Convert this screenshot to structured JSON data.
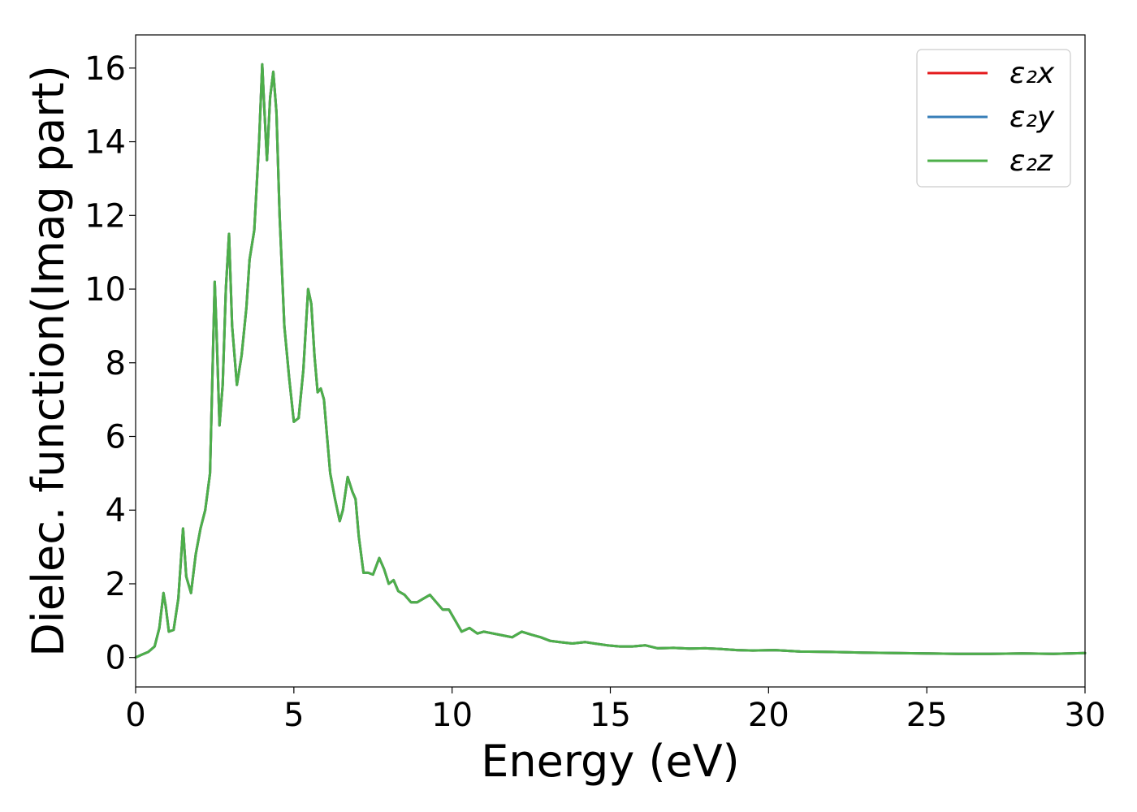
{
  "chart_data": {
    "type": "line",
    "title": "",
    "xlabel": "Energy (eV)",
    "ylabel": "Dielec. function(Imag part)",
    "xlim": [
      0,
      30
    ],
    "ylim": [
      -0.8,
      16.9
    ],
    "xticks": [
      0,
      5,
      10,
      15,
      20,
      25,
      30
    ],
    "xtick_labels": [
      "0",
      "5",
      "10",
      "15",
      "20",
      "25",
      "30"
    ],
    "yticks": [
      0,
      2,
      4,
      6,
      8,
      10,
      12,
      14,
      16
    ],
    "ytick_labels": [
      "0",
      "2",
      "4",
      "6",
      "8",
      "10",
      "12",
      "14",
      "16"
    ],
    "grid": false,
    "legend_position": "top-right",
    "x": [
      0,
      0.2,
      0.4,
      0.6,
      0.75,
      0.88,
      0.95,
      1.05,
      1.2,
      1.35,
      1.5,
      1.6,
      1.75,
      1.9,
      2.05,
      2.2,
      2.35,
      2.5,
      2.55,
      2.65,
      2.75,
      2.85,
      2.95,
      3.05,
      3.2,
      3.35,
      3.5,
      3.6,
      3.75,
      3.9,
      4.0,
      4.05,
      4.15,
      4.25,
      4.35,
      4.45,
      4.55,
      4.7,
      4.85,
      5.0,
      5.15,
      5.3,
      5.45,
      5.55,
      5.65,
      5.75,
      5.85,
      5.95,
      6.05,
      6.15,
      6.3,
      6.45,
      6.55,
      6.7,
      6.85,
      6.95,
      7.05,
      7.2,
      7.35,
      7.5,
      7.7,
      7.85,
      8.0,
      8.15,
      8.3,
      8.5,
      8.7,
      8.9,
      9.1,
      9.3,
      9.5,
      9.7,
      9.9,
      10.1,
      10.3,
      10.55,
      10.8,
      11.0,
      11.3,
      11.6,
      11.9,
      12.2,
      12.5,
      12.8,
      13.1,
      13.4,
      13.8,
      14.2,
      14.5,
      14.9,
      15.3,
      15.7,
      16.1,
      16.5,
      17.0,
      17.5,
      18.0,
      18.5,
      19.0,
      19.5,
      20.2,
      21.0,
      22.0,
      23.0,
      24.0,
      25.0,
      26.0,
      27.0,
      28.0,
      29.0,
      30.0
    ],
    "series": [
      {
        "name": "ε₂x",
        "color": "#e41a1c",
        "values": [
          0.0,
          0.08,
          0.15,
          0.3,
          0.8,
          1.75,
          1.4,
          0.7,
          0.75,
          1.6,
          3.5,
          2.2,
          1.75,
          2.8,
          3.5,
          4.0,
          5.0,
          10.2,
          9.0,
          6.3,
          7.4,
          10.0,
          11.5,
          9.0,
          7.4,
          8.2,
          9.5,
          10.8,
          11.6,
          14.0,
          16.1,
          15.2,
          13.5,
          15.2,
          15.9,
          14.8,
          12.0,
          9.0,
          7.6,
          6.4,
          6.5,
          7.8,
          10.0,
          9.6,
          8.2,
          7.2,
          7.3,
          7.0,
          6.0,
          5.0,
          4.3,
          3.7,
          4.0,
          4.9,
          4.5,
          4.3,
          3.3,
          2.3,
          2.3,
          2.25,
          2.7,
          2.4,
          2.0,
          2.1,
          1.8,
          1.7,
          1.5,
          1.5,
          1.6,
          1.7,
          1.5,
          1.3,
          1.3,
          1.0,
          0.7,
          0.8,
          0.65,
          0.7,
          0.65,
          0.6,
          0.55,
          0.7,
          0.62,
          0.55,
          0.45,
          0.42,
          0.38,
          0.42,
          0.38,
          0.33,
          0.3,
          0.3,
          0.33,
          0.25,
          0.26,
          0.24,
          0.25,
          0.23,
          0.2,
          0.19,
          0.2,
          0.16,
          0.15,
          0.13,
          0.12,
          0.11,
          0.1,
          0.1,
          0.11,
          0.1,
          0.12
        ]
      },
      {
        "name": "ε₂y",
        "color": "#377eb8",
        "values": [
          0.0,
          0.08,
          0.15,
          0.3,
          0.8,
          1.75,
          1.4,
          0.7,
          0.75,
          1.6,
          3.5,
          2.2,
          1.75,
          2.8,
          3.5,
          4.0,
          5.0,
          10.2,
          9.0,
          6.3,
          7.4,
          10.0,
          11.5,
          9.0,
          7.4,
          8.2,
          9.5,
          10.8,
          11.6,
          14.0,
          16.1,
          15.2,
          13.5,
          15.2,
          15.9,
          14.8,
          12.0,
          9.0,
          7.6,
          6.4,
          6.5,
          7.8,
          10.0,
          9.6,
          8.2,
          7.2,
          7.3,
          7.0,
          6.0,
          5.0,
          4.3,
          3.7,
          4.0,
          4.9,
          4.5,
          4.3,
          3.3,
          2.3,
          2.3,
          2.25,
          2.7,
          2.4,
          2.0,
          2.1,
          1.8,
          1.7,
          1.5,
          1.5,
          1.6,
          1.7,
          1.5,
          1.3,
          1.3,
          1.0,
          0.7,
          0.8,
          0.65,
          0.7,
          0.65,
          0.6,
          0.55,
          0.7,
          0.62,
          0.55,
          0.45,
          0.42,
          0.38,
          0.42,
          0.38,
          0.33,
          0.3,
          0.3,
          0.33,
          0.25,
          0.26,
          0.24,
          0.25,
          0.23,
          0.2,
          0.19,
          0.2,
          0.16,
          0.15,
          0.13,
          0.12,
          0.11,
          0.1,
          0.1,
          0.11,
          0.1,
          0.12
        ]
      },
      {
        "name": "ε₂z",
        "color": "#4daf4a",
        "values": [
          0.0,
          0.08,
          0.15,
          0.3,
          0.8,
          1.75,
          1.4,
          0.7,
          0.75,
          1.6,
          3.5,
          2.2,
          1.75,
          2.8,
          3.5,
          4.0,
          5.0,
          10.2,
          9.0,
          6.3,
          7.4,
          10.0,
          11.5,
          9.0,
          7.4,
          8.2,
          9.5,
          10.8,
          11.6,
          14.0,
          16.1,
          15.2,
          13.5,
          15.2,
          15.9,
          14.8,
          12.0,
          9.0,
          7.6,
          6.4,
          6.5,
          7.8,
          10.0,
          9.6,
          8.2,
          7.2,
          7.3,
          7.0,
          6.0,
          5.0,
          4.3,
          3.7,
          4.0,
          4.9,
          4.5,
          4.3,
          3.3,
          2.3,
          2.3,
          2.25,
          2.7,
          2.4,
          2.0,
          2.1,
          1.8,
          1.7,
          1.5,
          1.5,
          1.6,
          1.7,
          1.5,
          1.3,
          1.3,
          1.0,
          0.7,
          0.8,
          0.65,
          0.7,
          0.65,
          0.6,
          0.55,
          0.7,
          0.62,
          0.55,
          0.45,
          0.42,
          0.38,
          0.42,
          0.38,
          0.33,
          0.3,
          0.3,
          0.33,
          0.25,
          0.26,
          0.24,
          0.25,
          0.23,
          0.2,
          0.19,
          0.2,
          0.16,
          0.15,
          0.13,
          0.12,
          0.11,
          0.1,
          0.1,
          0.11,
          0.1,
          0.12
        ]
      }
    ]
  }
}
